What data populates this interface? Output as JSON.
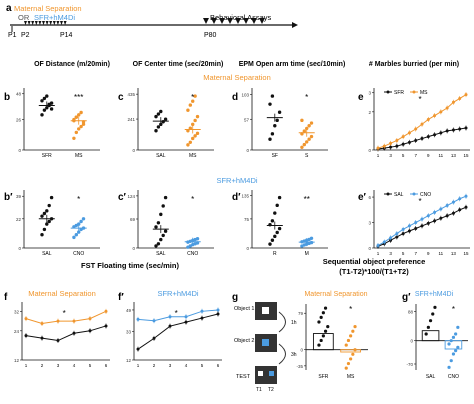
{
  "colors": {
    "orange": "#f0962e",
    "blue": "#4b9be0",
    "black": "#111111"
  },
  "timeline": {
    "panel": "a",
    "ms_label": "Maternal Separation",
    "or_label": "OR",
    "sfr_label": "SFR+hM4Di",
    "behav_label": "Behavioral Assays",
    "ticks": [
      "P1",
      "P2",
      "P14",
      "P80"
    ]
  },
  "section_labels": {
    "ms": "Maternal Separation",
    "sfr": "SFR+hM4Di",
    "fst_title": "FST Floating time (sec/min)",
    "sop_title": "Sequential object preference",
    "sop_formula": "(T1-T2)*100/(T1+T2)"
  },
  "column_titles": {
    "of_distance": "OF Distance (m/20min)",
    "of_center": "OF Center time (sec/20min)",
    "epm": "EPM Open arm time (sec/10min)",
    "marbles": "# Marbles burried (per min)"
  },
  "panel_labels": {
    "b": "b",
    "c": "c",
    "d": "d",
    "e": "e",
    "b2": "b′",
    "c2": "c′",
    "d2": "d′",
    "e2": "e′",
    "f": "f",
    "f2": "f′",
    "g": "g",
    "g2": "g′"
  },
  "sop_diagram": {
    "object1": "Object 1",
    "object2": "Object 2",
    "test": "TEST",
    "t1": "T1",
    "t2": "T2",
    "delay1": "1h",
    "delay2": "3h"
  },
  "chart_data": [
    {
      "id": "b",
      "type": "scatter",
      "categories": [
        "SFR",
        "MS"
      ],
      "stars": "***",
      "means": [
        38,
        25
      ],
      "points": [
        [
          30,
          34,
          36,
          38,
          40,
          42,
          44,
          46,
          39,
          35
        ],
        [
          10,
          15,
          18,
          20,
          22,
          25,
          28,
          30,
          32,
          24,
          26,
          28
        ]
      ]
    },
    {
      "id": "c",
      "type": "scatter",
      "categories": [
        "SAL",
        "MS"
      ],
      "stars": "*",
      "means": [
        225,
        160
      ],
      "points": [
        [
          150,
          180,
          200,
          220,
          240,
          260,
          280,
          300
        ],
        [
          40,
          60,
          90,
          110,
          130,
          150,
          170,
          200,
          230,
          260,
          310,
          350,
          380,
          420
        ]
      ]
    },
    {
      "id": "d",
      "type": "scatter",
      "categories": [
        "SF",
        "S"
      ],
      "stars": "*",
      "means": [
        60,
        32
      ],
      "points": [
        [
          20,
          30,
          45,
          55,
          70,
          85,
          100
        ],
        [
          5,
          10,
          15,
          20,
          25,
          30,
          35,
          40,
          45,
          50,
          55
        ]
      ]
    },
    {
      "id": "e",
      "type": "line",
      "legend": [
        "SFR",
        "MS"
      ],
      "stars": "*",
      "x": [
        1,
        2,
        3,
        4,
        5,
        6,
        7,
        8,
        9,
        10,
        11,
        12,
        13,
        14,
        15
      ],
      "series": [
        {
          "name": "SFR",
          "values": [
            0.05,
            0.1,
            0.15,
            0.2,
            0.3,
            0.4,
            0.5,
            0.6,
            0.7,
            0.8,
            0.9,
            1.0,
            1.05,
            1.1,
            1.15
          ]
        },
        {
          "name": "MS",
          "values": [
            0.1,
            0.2,
            0.35,
            0.5,
            0.7,
            0.9,
            1.1,
            1.35,
            1.6,
            1.8,
            2.0,
            2.2,
            2.5,
            2.7,
            2.9
          ]
        }
      ]
    },
    {
      "id": "b2",
      "type": "scatter",
      "categories": [
        "SAL",
        "CNO"
      ],
      "stars": "*",
      "means": [
        22,
        15
      ],
      "points": [
        [
          10,
          14,
          18,
          20,
          22,
          24,
          26,
          28,
          32,
          38
        ],
        [
          8,
          10,
          12,
          14,
          15,
          16,
          17,
          18,
          20,
          22
        ]
      ]
    },
    {
      "id": "c2",
      "type": "scatter",
      "categories": [
        "SAL",
        "CNO"
      ],
      "stars": "*",
      "means": [
        45,
        15
      ],
      "points": [
        [
          5,
          10,
          20,
          30,
          40,
          50,
          60,
          80,
          100,
          120
        ],
        [
          2,
          5,
          8,
          10,
          12,
          14,
          16,
          18,
          20,
          22
        ]
      ]
    },
    {
      "id": "d2",
      "type": "scatter",
      "categories": [
        "R",
        "M"
      ],
      "stars": "**",
      "means": [
        58,
        15
      ],
      "points": [
        [
          10,
          20,
          30,
          40,
          50,
          60,
          70,
          90,
          110,
          130
        ],
        [
          5,
          8,
          10,
          12,
          14,
          16,
          18,
          20,
          22,
          25
        ]
      ]
    },
    {
      "id": "e2",
      "type": "line",
      "legend": [
        "SAL",
        "CNO"
      ],
      "stars": "*",
      "x": [
        1,
        2,
        3,
        4,
        5,
        6,
        7,
        8,
        9,
        10,
        11,
        12,
        13,
        14,
        15
      ],
      "series": [
        {
          "name": "SAL",
          "values": [
            0.2,
            0.5,
            0.9,
            1.3,
            1.7,
            2.0,
            2.3,
            2.6,
            2.9,
            3.2,
            3.5,
            3.8,
            4.1,
            4.5,
            4.8
          ]
        },
        {
          "name": "CNO",
          "values": [
            0.3,
            0.7,
            1.2,
            1.7,
            2.2,
            2.6,
            3.0,
            3.4,
            3.8,
            4.2,
            4.6,
            5.0,
            5.4,
            5.8,
            6.1
          ]
        }
      ]
    },
    {
      "id": "f",
      "type": "line",
      "x": [
        1,
        2,
        3,
        4,
        5,
        6
      ],
      "stars": "*",
      "series": [
        {
          "name": "MS",
          "values": [
            29,
            27,
            28,
            28,
            29,
            32
          ]
        },
        {
          "name": "SFR",
          "values": [
            22,
            21,
            20,
            23,
            24,
            26
          ]
        }
      ]
    },
    {
      "id": "f2",
      "type": "line",
      "x": [
        1,
        2,
        3,
        4,
        5,
        6
      ],
      "stars": "*",
      "series": [
        {
          "name": "CNO",
          "values": [
            42,
            41,
            44,
            44,
            48,
            49
          ]
        },
        {
          "name": "SAL",
          "values": [
            20,
            28,
            37,
            40,
            43,
            46
          ]
        }
      ]
    },
    {
      "id": "g",
      "type": "bar",
      "categories": [
        "SFR",
        "MS"
      ],
      "stars": "*",
      "values": [
        35,
        -5
      ],
      "points": [
        [
          10,
          20,
          30,
          40,
          50,
          60,
          70,
          80,
          90
        ],
        [
          -40,
          -30,
          -20,
          -10,
          0,
          10,
          20,
          30,
          40,
          50
        ]
      ]
    },
    {
      "id": "g2",
      "type": "bar",
      "categories": [
        "SAL",
        "CNO"
      ],
      "stars": "*",
      "values": [
        30,
        -25
      ],
      "points": [
        [
          20,
          40,
          60,
          80,
          100
        ],
        [
          -80,
          -60,
          -40,
          -30,
          -20,
          -10,
          0,
          10,
          20,
          40
        ]
      ]
    }
  ]
}
